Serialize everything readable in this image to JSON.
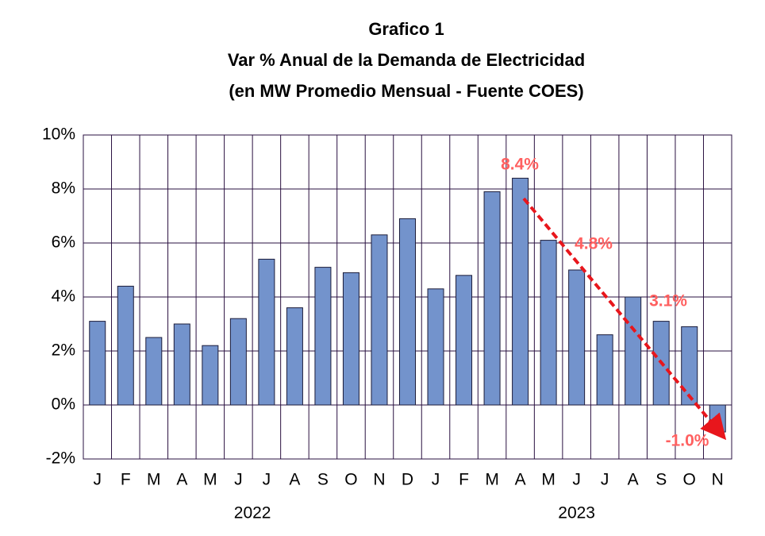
{
  "chart_data": {
    "type": "bar",
    "title": [
      "Grafico 1",
      "Var % Anual de la Demanda de Electricidad",
      "(en MW Promedio Mensual - Fuente COES)"
    ],
    "categories": [
      "J",
      "F",
      "M",
      "A",
      "M",
      "J",
      "J",
      "A",
      "S",
      "O",
      "N",
      "D",
      "J",
      "F",
      "M",
      "A",
      "M",
      "J",
      "J",
      "A",
      "S",
      "O",
      "N"
    ],
    "groups": [
      {
        "label": "2022",
        "count": 12
      },
      {
        "label": "2023",
        "count": 11
      }
    ],
    "values": [
      3.1,
      4.4,
      2.5,
      3.0,
      2.2,
      3.2,
      5.4,
      3.6,
      5.1,
      4.9,
      6.3,
      6.9,
      4.3,
      4.8,
      7.9,
      8.4,
      6.1,
      5.0,
      2.6,
      4.0,
      3.1,
      2.9,
      -1.0
    ],
    "color": "#7393cc",
    "ylim": [
      -2,
      10
    ],
    "yticks": [
      {
        "value": -2,
        "label": "-2%"
      },
      {
        "value": 0,
        "label": "0%"
      },
      {
        "value": 2,
        "label": "2%"
      },
      {
        "value": 4,
        "label": "4%"
      },
      {
        "value": 6,
        "label": "6%"
      },
      {
        "value": 8,
        "label": "8%"
      },
      {
        "value": 10,
        "label": "10%"
      }
    ],
    "grid": true,
    "annotations": [
      "8.4%",
      "4.8%",
      "3.1%",
      "-1.0%"
    ]
  }
}
